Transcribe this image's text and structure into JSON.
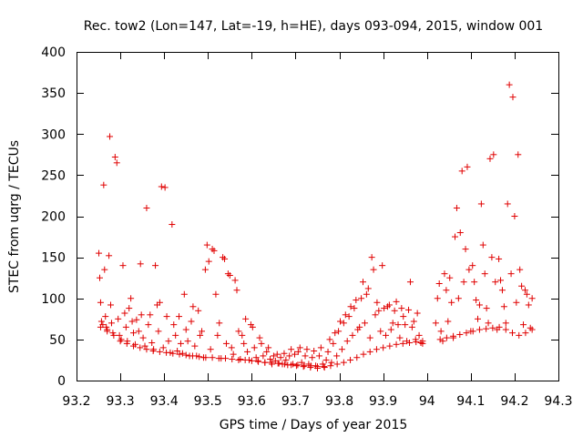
{
  "chart_data": {
    "type": "scatter",
    "title": "Rec. tow2 (Lon=147, Lat=-19, h=HE), days 093-094, 2015, window 001",
    "xlabel": "GPS time / Days of year 2015",
    "ylabel": "STEC from uqrg / TECUs",
    "xlim": [
      93.2,
      94.3
    ],
    "ylim": [
      0,
      400
    ],
    "xticks": [
      "93.2",
      "93.3",
      "93.4",
      "93.5",
      "93.6",
      "93.7",
      "93.8",
      "93.9",
      "94",
      "94.1",
      "94.2",
      "94.3"
    ],
    "yticks": [
      "0",
      "50",
      "100",
      "150",
      "200",
      "250",
      "300",
      "350",
      "400"
    ],
    "marker": "+",
    "color": "#e00000",
    "points": [
      [
        93.251,
        155
      ],
      [
        93.253,
        125
      ],
      [
        93.255,
        95
      ],
      [
        93.257,
        72
      ],
      [
        93.26,
        68
      ],
      [
        93.262,
        238
      ],
      [
        93.264,
        135
      ],
      [
        93.266,
        78
      ],
      [
        93.268,
        65
      ],
      [
        93.27,
        62
      ],
      [
        93.274,
        152
      ],
      [
        93.276,
        297
      ],
      [
        93.278,
        92
      ],
      [
        93.28,
        70
      ],
      [
        93.283,
        58
      ],
      [
        93.288,
        272
      ],
      [
        93.292,
        265
      ],
      [
        93.295,
        75
      ],
      [
        93.298,
        55
      ],
      [
        93.302,
        50
      ],
      [
        93.306,
        140
      ],
      [
        93.31,
        82
      ],
      [
        93.313,
        65
      ],
      [
        93.316,
        48
      ],
      [
        93.32,
        88
      ],
      [
        93.324,
        100
      ],
      [
        93.327,
        72
      ],
      [
        93.33,
        58
      ],
      [
        93.334,
        44
      ],
      [
        93.337,
        74
      ],
      [
        93.342,
        60
      ],
      [
        93.346,
        142
      ],
      [
        93.348,
        80
      ],
      [
        93.352,
        52
      ],
      [
        93.356,
        42
      ],
      [
        93.36,
        210
      ],
      [
        93.364,
        68
      ],
      [
        93.368,
        80
      ],
      [
        93.372,
        46
      ],
      [
        93.376,
        38
      ],
      [
        93.38,
        140
      ],
      [
        93.384,
        92
      ],
      [
        93.387,
        60
      ],
      [
        93.39,
        95
      ],
      [
        93.394,
        236
      ],
      [
        93.398,
        40
      ],
      [
        93.402,
        235
      ],
      [
        93.406,
        78
      ],
      [
        93.41,
        48
      ],
      [
        93.414,
        34
      ],
      [
        93.418,
        190
      ],
      [
        93.422,
        68
      ],
      [
        93.426,
        55
      ],
      [
        93.43,
        36
      ],
      [
        93.434,
        78
      ],
      [
        93.438,
        45
      ],
      [
        93.442,
        33
      ],
      [
        93.446,
        105
      ],
      [
        93.45,
        62
      ],
      [
        93.454,
        48
      ],
      [
        93.458,
        30
      ],
      [
        93.462,
        72
      ],
      [
        93.466,
        90
      ],
      [
        93.47,
        42
      ],
      [
        93.474,
        30
      ],
      [
        93.478,
        85
      ],
      [
        93.482,
        55
      ],
      [
        93.486,
        60
      ],
      [
        93.49,
        28
      ],
      [
        93.494,
        135
      ],
      [
        93.498,
        165
      ],
      [
        93.502,
        145
      ],
      [
        93.506,
        38
      ],
      [
        93.51,
        160
      ],
      [
        93.514,
        158
      ],
      [
        93.518,
        105
      ],
      [
        93.522,
        55
      ],
      [
        93.526,
        70
      ],
      [
        93.53,
        27
      ],
      [
        93.534,
        150
      ],
      [
        93.538,
        148
      ],
      [
        93.542,
        45
      ],
      [
        93.546,
        130
      ],
      [
        93.55,
        128
      ],
      [
        93.554,
        40
      ],
      [
        93.558,
        32
      ],
      [
        93.562,
        122
      ],
      [
        93.566,
        110
      ],
      [
        93.57,
        60
      ],
      [
        93.574,
        26
      ],
      [
        93.578,
        55
      ],
      [
        93.582,
        45
      ],
      [
        93.586,
        75
      ],
      [
        93.59,
        35
      ],
      [
        93.594,
        25
      ],
      [
        93.598,
        68
      ],
      [
        93.602,
        65
      ],
      [
        93.606,
        40
      ],
      [
        93.61,
        28
      ],
      [
        93.614,
        24
      ],
      [
        93.618,
        52
      ],
      [
        93.622,
        45
      ],
      [
        93.626,
        30
      ],
      [
        93.63,
        22
      ],
      [
        93.634,
        35
      ],
      [
        93.638,
        40
      ],
      [
        93.642,
        26
      ],
      [
        93.646,
        20
      ],
      [
        93.65,
        30
      ],
      [
        93.654,
        24
      ],
      [
        93.658,
        32
      ],
      [
        93.662,
        21
      ],
      [
        93.666,
        28
      ],
      [
        93.67,
        20
      ],
      [
        93.674,
        33
      ],
      [
        93.678,
        25
      ],
      [
        93.682,
        19
      ],
      [
        93.686,
        30
      ],
      [
        93.69,
        38
      ],
      [
        93.694,
        20
      ],
      [
        93.698,
        32
      ],
      [
        93.702,
        18
      ],
      [
        93.706,
        35
      ],
      [
        93.71,
        40
      ],
      [
        93.714,
        22
      ],
      [
        93.718,
        17
      ],
      [
        93.722,
        30
      ],
      [
        93.726,
        38
      ],
      [
        93.73,
        20
      ],
      [
        93.734,
        16
      ],
      [
        93.738,
        28
      ],
      [
        93.742,
        36
      ],
      [
        93.746,
        18
      ],
      [
        93.75,
        15
      ],
      [
        93.754,
        30
      ],
      [
        93.758,
        40
      ],
      [
        93.762,
        20
      ],
      [
        93.766,
        16
      ],
      [
        93.77,
        25
      ],
      [
        93.774,
        35
      ],
      [
        93.778,
        50
      ],
      [
        93.782,
        22
      ],
      [
        93.786,
        45
      ],
      [
        93.79,
        58
      ],
      [
        93.794,
        30
      ],
      [
        93.798,
        60
      ],
      [
        93.802,
        72
      ],
      [
        93.806,
        38
      ],
      [
        93.81,
        70
      ],
      [
        93.814,
        80
      ],
      [
        93.818,
        48
      ],
      [
        93.822,
        78
      ],
      [
        93.826,
        90
      ],
      [
        93.83,
        55
      ],
      [
        93.834,
        88
      ],
      [
        93.838,
        98
      ],
      [
        93.842,
        62
      ],
      [
        93.846,
        65
      ],
      [
        93.85,
        100
      ],
      [
        93.854,
        120
      ],
      [
        93.858,
        70
      ],
      [
        93.862,
        105
      ],
      [
        93.866,
        112
      ],
      [
        93.87,
        52
      ],
      [
        93.874,
        150
      ],
      [
        93.878,
        135
      ],
      [
        93.882,
        80
      ],
      [
        93.886,
        95
      ],
      [
        93.89,
        85
      ],
      [
        93.894,
        60
      ],
      [
        93.898,
        140
      ],
      [
        93.902,
        88
      ],
      [
        93.906,
        55
      ],
      [
        93.91,
        90
      ],
      [
        93.914,
        92
      ],
      [
        93.918,
        62
      ],
      [
        93.922,
        70
      ],
      [
        93.926,
        85
      ],
      [
        93.93,
        96
      ],
      [
        93.934,
        68
      ],
      [
        93.938,
        52
      ],
      [
        93.942,
        88
      ],
      [
        93.946,
        78
      ],
      [
        93.95,
        68
      ],
      [
        93.954,
        48
      ],
      [
        93.958,
        86
      ],
      [
        93.962,
        120
      ],
      [
        93.966,
        65
      ],
      [
        93.97,
        72
      ],
      [
        93.974,
        50
      ],
      [
        93.978,
        82
      ],
      [
        93.982,
        55
      ],
      [
        93.986,
        46
      ],
      [
        93.99,
        45
      ],
      [
        94.02,
        70
      ],
      [
        94.024,
        100
      ],
      [
        94.028,
        118
      ],
      [
        94.032,
        60
      ],
      [
        94.036,
        48
      ],
      [
        94.04,
        130
      ],
      [
        94.044,
        110
      ],
      [
        94.048,
        72
      ],
      [
        94.052,
        125
      ],
      [
        94.056,
        95
      ],
      [
        94.06,
        52
      ],
      [
        94.064,
        175
      ],
      [
        94.068,
        210
      ],
      [
        94.072,
        100
      ],
      [
        94.076,
        180
      ],
      [
        94.08,
        255
      ],
      [
        94.084,
        120
      ],
      [
        94.088,
        160
      ],
      [
        94.092,
        260
      ],
      [
        94.096,
        135
      ],
      [
        94.1,
        60
      ],
      [
        94.104,
        140
      ],
      [
        94.108,
        120
      ],
      [
        94.112,
        98
      ],
      [
        94.116,
        75
      ],
      [
        94.12,
        92
      ],
      [
        94.124,
        215
      ],
      [
        94.128,
        165
      ],
      [
        94.132,
        130
      ],
      [
        94.136,
        88
      ],
      [
        94.14,
        70
      ],
      [
        94.144,
        270
      ],
      [
        94.148,
        150
      ],
      [
        94.152,
        275
      ],
      [
        94.156,
        120
      ],
      [
        94.16,
        62
      ],
      [
        94.164,
        148
      ],
      [
        94.168,
        122
      ],
      [
        94.172,
        110
      ],
      [
        94.176,
        90
      ],
      [
        94.18,
        70
      ],
      [
        94.184,
        215
      ],
      [
        94.188,
        360
      ],
      [
        94.192,
        130
      ],
      [
        94.196,
        345
      ],
      [
        94.2,
        200
      ],
      [
        94.204,
        95
      ],
      [
        94.208,
        275
      ],
      [
        94.212,
        135
      ],
      [
        94.216,
        115
      ],
      [
        94.22,
        68
      ],
      [
        94.224,
        110
      ],
      [
        94.228,
        105
      ],
      [
        94.232,
        92
      ],
      [
        94.236,
        64
      ],
      [
        94.24,
        100
      ],
      [
        93.255,
        65
      ],
      [
        93.27,
        60
      ],
      [
        93.285,
        55
      ],
      [
        93.3,
        48
      ],
      [
        93.315,
        45
      ],
      [
        93.33,
        42
      ],
      [
        93.345,
        40
      ],
      [
        93.36,
        38
      ],
      [
        93.375,
        36
      ],
      [
        93.39,
        35
      ],
      [
        93.405,
        34
      ],
      [
        93.42,
        33
      ],
      [
        93.435,
        32
      ],
      [
        93.45,
        31
      ],
      [
        93.465,
        30
      ],
      [
        93.48,
        29
      ],
      [
        93.495,
        28
      ],
      [
        93.51,
        28
      ],
      [
        93.525,
        27
      ],
      [
        93.54,
        27
      ],
      [
        93.555,
        26
      ],
      [
        93.57,
        25
      ],
      [
        93.585,
        25
      ],
      [
        93.6,
        24
      ],
      [
        93.615,
        23
      ],
      [
        93.63,
        22
      ],
      [
        93.645,
        22
      ],
      [
        93.66,
        21
      ],
      [
        93.675,
        20
      ],
      [
        93.69,
        19
      ],
      [
        93.705,
        19
      ],
      [
        93.72,
        18
      ],
      [
        93.735,
        18
      ],
      [
        93.75,
        17
      ],
      [
        93.765,
        17
      ],
      [
        93.78,
        18
      ],
      [
        93.795,
        20
      ],
      [
        93.81,
        22
      ],
      [
        93.825,
        25
      ],
      [
        93.84,
        28
      ],
      [
        93.855,
        32
      ],
      [
        93.87,
        35
      ],
      [
        93.885,
        38
      ],
      [
        93.9,
        40
      ],
      [
        93.915,
        42
      ],
      [
        93.93,
        44
      ],
      [
        93.945,
        45
      ],
      [
        93.96,
        46
      ],
      [
        93.975,
        47
      ],
      [
        93.99,
        48
      ],
      [
        94.03,
        50
      ],
      [
        94.045,
        52
      ],
      [
        94.06,
        54
      ],
      [
        94.075,
        56
      ],
      [
        94.09,
        58
      ],
      [
        94.105,
        60
      ],
      [
        94.12,
        62
      ],
      [
        94.135,
        63
      ],
      [
        94.15,
        64
      ],
      [
        94.165,
        65
      ],
      [
        94.18,
        62
      ],
      [
        94.195,
        58
      ],
      [
        94.21,
        55
      ],
      [
        94.225,
        58
      ],
      [
        94.24,
        62
      ]
    ]
  }
}
